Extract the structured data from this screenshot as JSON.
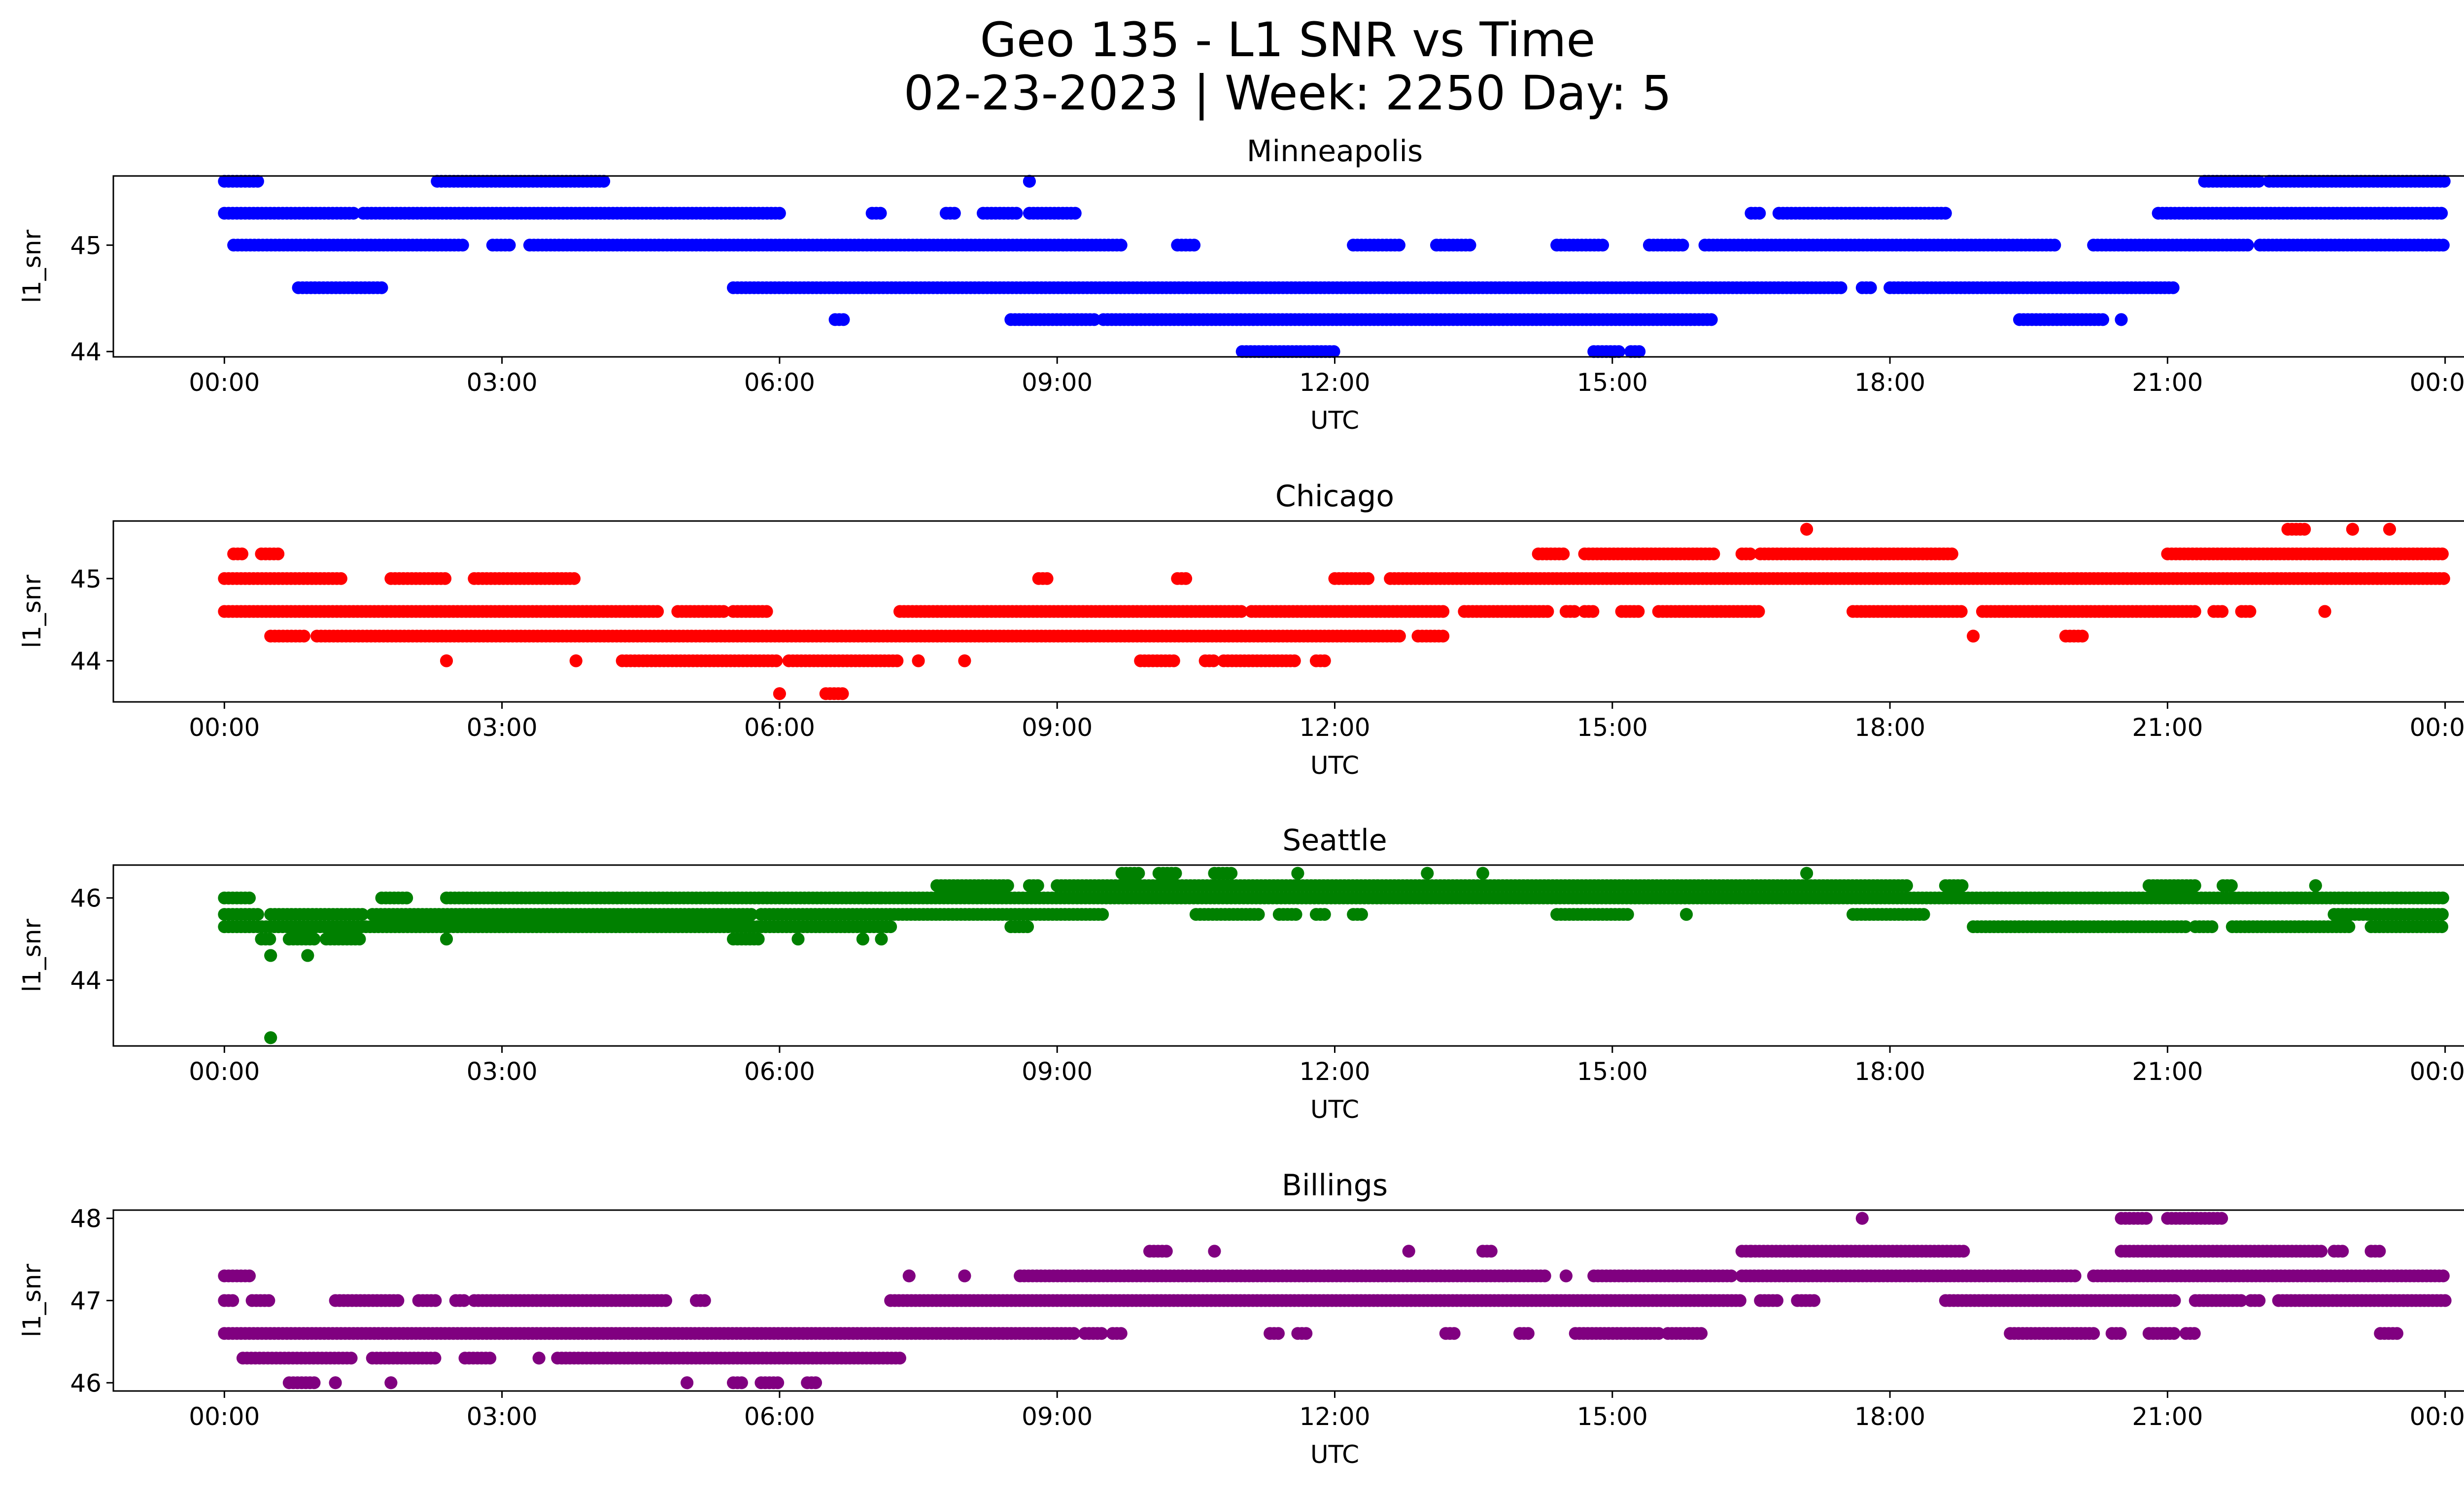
{
  "figure": {
    "title_line1": "Geo 135 - L1 SNR vs Time",
    "title_line2": "02-23-2023 | Week: 2250 Day: 5"
  },
  "chart_data": [
    {
      "type": "scatter",
      "title": "Minneapolis",
      "xlabel": "UTC",
      "ylabel": "l1_snr",
      "color": "#0000ff",
      "xlim_hours": [
        -1.2,
        25.2
      ],
      "ylim": [
        43.95,
        45.65
      ],
      "x_ticks": [
        "00:00",
        "03:00",
        "06:00",
        "09:00",
        "12:00",
        "15:00",
        "18:00",
        "21:00",
        "00:00"
      ],
      "y_ticks": [
        44,
        45
      ],
      "y_levels": [
        44.0,
        44.3,
        44.6,
        45.0,
        45.3,
        45.6
      ],
      "bands": [
        {
          "y": 45.0,
          "segments": [
            [
              0.1,
              2.6
            ],
            [
              2.9,
              3.1
            ],
            [
              3.3,
              9.7
            ],
            [
              10.3,
              10.5
            ],
            [
              12.2,
              12.7
            ],
            [
              13.1,
              13.5
            ],
            [
              14.4,
              14.9
            ],
            [
              15.4,
              15.8
            ],
            [
              16.0,
              19.8
            ],
            [
              20.2,
              21.9
            ],
            [
              22.0,
              24.0
            ]
          ]
        },
        {
          "y": 45.3,
          "segments": [
            [
              0.0,
              1.4
            ],
            [
              1.5,
              6.0
            ],
            [
              7.0,
              7.1
            ],
            [
              7.8,
              7.9
            ],
            [
              8.2,
              8.6
            ],
            [
              8.7,
              9.2
            ],
            [
              16.5,
              16.6
            ],
            [
              16.8,
              18.6
            ],
            [
              20.9,
              24.0
            ]
          ]
        },
        {
          "y": 45.6,
          "segments": [
            [
              0.0,
              0.4
            ],
            [
              2.3,
              4.1
            ],
            [
              8.7,
              8.7
            ],
            [
              21.4,
              22.0
            ],
            [
              22.1,
              24.0
            ]
          ]
        },
        {
          "y": 44.6,
          "segments": [
            [
              0.8,
              1.7
            ],
            [
              5.5,
              17.5
            ],
            [
              17.7,
              17.8
            ],
            [
              18.0,
              21.1
            ]
          ]
        },
        {
          "y": 44.3,
          "segments": [
            [
              6.6,
              6.7
            ],
            [
              8.5,
              9.4
            ],
            [
              9.5,
              16.1
            ],
            [
              19.4,
              20.3
            ],
            [
              20.5,
              20.5
            ]
          ]
        },
        {
          "y": 44.0,
          "segments": [
            [
              11.0,
              12.0
            ],
            [
              14.8,
              15.1
            ],
            [
              15.2,
              15.3
            ]
          ]
        }
      ]
    },
    {
      "type": "scatter",
      "title": "Chicago",
      "xlabel": "UTC",
      "ylabel": "l1_snr",
      "color": "#ff0000",
      "xlim_hours": [
        -1.2,
        25.2
      ],
      "ylim": [
        43.5,
        45.7
      ],
      "x_ticks": [
        "00:00",
        "03:00",
        "06:00",
        "09:00",
        "12:00",
        "15:00",
        "18:00",
        "21:00",
        "00:00"
      ],
      "y_ticks": [
        44,
        45
      ],
      "y_levels": [
        43.6,
        44.0,
        44.3,
        44.6,
        45.0,
        45.3,
        45.6
      ],
      "bands": [
        {
          "y": 45.0,
          "segments": [
            [
              0.0,
              1.3
            ],
            [
              1.8,
              2.4
            ],
            [
              2.7,
              3.8
            ],
            [
              8.8,
              8.9
            ],
            [
              10.3,
              10.4
            ],
            [
              12.0,
              12.4
            ],
            [
              12.6,
              24.0
            ]
          ]
        },
        {
          "y": 45.3,
          "segments": [
            [
              0.1,
              0.2
            ],
            [
              0.4,
              0.6
            ],
            [
              14.2,
              14.5
            ],
            [
              14.7,
              16.1
            ],
            [
              16.4,
              16.5
            ],
            [
              16.6,
              18.7
            ],
            [
              21.0,
              24.0
            ]
          ]
        },
        {
          "y": 45.6,
          "segments": [
            [
              17.1,
              17.1
            ],
            [
              22.3,
              22.5
            ],
            [
              23.0,
              23.0
            ],
            [
              23.4,
              23.4
            ]
          ]
        },
        {
          "y": 44.6,
          "segments": [
            [
              0.0,
              4.7
            ],
            [
              4.9,
              5.4
            ],
            [
              5.5,
              5.9
            ],
            [
              7.3,
              11.0
            ],
            [
              11.1,
              13.2
            ],
            [
              13.4,
              14.3
            ],
            [
              14.5,
              14.6
            ],
            [
              14.7,
              14.8
            ],
            [
              15.1,
              15.3
            ],
            [
              15.5,
              16.6
            ],
            [
              17.6,
              18.8
            ],
            [
              19.0,
              21.3
            ],
            [
              21.5,
              21.6
            ],
            [
              21.8,
              21.9
            ],
            [
              22.7,
              22.7
            ]
          ]
        },
        {
          "y": 44.3,
          "segments": [
            [
              0.5,
              0.9
            ],
            [
              1.0,
              12.7
            ],
            [
              12.9,
              13.2
            ],
            [
              18.9,
              18.9
            ],
            [
              19.9,
              20.1
            ]
          ]
        },
        {
          "y": 44.0,
          "segments": [
            [
              2.4,
              2.4
            ],
            [
              3.8,
              3.8
            ],
            [
              4.3,
              6.0
            ],
            [
              6.1,
              7.3
            ],
            [
              7.5,
              7.5
            ],
            [
              8.0,
              8.0
            ],
            [
              9.9,
              10.3
            ],
            [
              10.6,
              10.7
            ],
            [
              10.8,
              11.6
            ],
            [
              11.8,
              11.9
            ]
          ]
        },
        {
          "y": 43.6,
          "segments": [
            [
              6.0,
              6.0
            ],
            [
              6.5,
              6.7
            ]
          ]
        }
      ]
    },
    {
      "type": "scatter",
      "title": "Seattle",
      "xlabel": "UTC",
      "ylabel": "l1_snr",
      "color": "#008000",
      "xlim_hours": [
        -1.2,
        25.2
      ],
      "ylim": [
        42.4,
        46.8
      ],
      "x_ticks": [
        "00:00",
        "03:00",
        "06:00",
        "09:00",
        "12:00",
        "15:00",
        "18:00",
        "21:00",
        "00:00"
      ],
      "y_ticks": [
        44,
        46
      ],
      "y_levels": [
        42.6,
        44.6,
        45.0,
        45.3,
        45.6,
        46.0,
        46.3,
        46.6
      ],
      "bands": [
        {
          "y": 45.3,
          "segments": [
            [
              0.0,
              7.2
            ],
            [
              8.5,
              8.7
            ],
            [
              18.9,
              21.2
            ],
            [
              21.3,
              21.5
            ],
            [
              21.7,
              23.0
            ],
            [
              23.2,
              24.0
            ]
          ]
        },
        {
          "y": 45.6,
          "segments": [
            [
              0.0,
              0.4
            ],
            [
              0.5,
              1.5
            ],
            [
              1.6,
              5.7
            ],
            [
              5.8,
              9.5
            ],
            [
              10.5,
              11.2
            ],
            [
              11.4,
              11.6
            ],
            [
              11.8,
              11.9
            ],
            [
              12.2,
              12.3
            ],
            [
              14.4,
              15.2
            ],
            [
              15.8,
              15.8
            ],
            [
              17.6,
              18.4
            ],
            [
              22.8,
              24.0
            ]
          ]
        },
        {
          "y": 46.0,
          "segments": [
            [
              0.0,
              0.3
            ],
            [
              1.7,
              2.0
            ],
            [
              2.4,
              7.1
            ],
            [
              7.1,
              24.0
            ]
          ]
        },
        {
          "y": 46.3,
          "segments": [
            [
              7.7,
              8.5
            ],
            [
              8.7,
              8.8
            ],
            [
              9.0,
              18.2
            ],
            [
              18.6,
              18.8
            ],
            [
              20.8,
              21.3
            ],
            [
              21.6,
              21.7
            ],
            [
              22.6,
              22.6
            ]
          ]
        },
        {
          "y": 46.6,
          "segments": [
            [
              9.7,
              9.9
            ],
            [
              10.1,
              10.3
            ],
            [
              10.7,
              10.9
            ],
            [
              11.6,
              11.6
            ],
            [
              13.0,
              13.0
            ],
            [
              13.6,
              13.6
            ],
            [
              17.1,
              17.1
            ]
          ]
        },
        {
          "y": 45.0,
          "segments": [
            [
              0.4,
              0.5
            ],
            [
              0.7,
              1.0
            ],
            [
              1.1,
              1.5
            ],
            [
              2.4,
              2.4
            ],
            [
              5.5,
              5.8
            ],
            [
              6.2,
              6.2
            ],
            [
              6.9,
              6.9
            ],
            [
              7.1,
              7.1
            ]
          ]
        },
        {
          "y": 44.6,
          "segments": [
            [
              0.5,
              0.5
            ],
            [
              0.9,
              0.9
            ]
          ]
        },
        {
          "y": 42.6,
          "segments": [
            [
              0.5,
              0.5
            ]
          ]
        }
      ]
    },
    {
      "type": "scatter",
      "title": "Billings",
      "xlabel": "UTC",
      "ylabel": "l1_snr",
      "color": "#800080",
      "xlim_hours": [
        -1.2,
        25.2
      ],
      "ylim": [
        45.9,
        48.1
      ],
      "x_ticks": [
        "00:00",
        "03:00",
        "06:00",
        "09:00",
        "12:00",
        "15:00",
        "18:00",
        "21:00",
        "00:00"
      ],
      "y_ticks": [
        46,
        47,
        48
      ],
      "y_levels": [
        46.0,
        46.3,
        46.6,
        47.0,
        47.3,
        47.6,
        48.0
      ],
      "bands": [
        {
          "y": 46.0,
          "segments": [
            [
              0.7,
              1.0
            ],
            [
              1.2,
              1.2
            ],
            [
              1.8,
              1.8
            ],
            [
              5.0,
              5.0
            ],
            [
              5.5,
              5.6
            ],
            [
              5.8,
              6.0
            ],
            [
              6.3,
              6.4
            ]
          ]
        },
        {
          "y": 46.3,
          "segments": [
            [
              0.2,
              1.4
            ],
            [
              1.6,
              2.3
            ],
            [
              2.6,
              2.9
            ],
            [
              3.4,
              3.4
            ],
            [
              3.6,
              4.6
            ],
            [
              4.6,
              7.3
            ]
          ]
        },
        {
          "y": 46.6,
          "segments": [
            [
              0.0,
              9.2
            ],
            [
              9.3,
              9.5
            ],
            [
              9.6,
              9.7
            ],
            [
              11.3,
              11.4
            ],
            [
              11.6,
              11.7
            ],
            [
              13.2,
              13.3
            ],
            [
              14.0,
              14.1
            ],
            [
              14.6,
              15.5
            ],
            [
              15.6,
              16.0
            ],
            [
              19.3,
              20.2
            ],
            [
              20.4,
              20.5
            ],
            [
              20.8,
              21.1
            ],
            [
              21.2,
              21.3
            ],
            [
              23.3,
              23.5
            ]
          ]
        },
        {
          "y": 47.0,
          "segments": [
            [
              0.0,
              0.1
            ],
            [
              0.3,
              0.5
            ],
            [
              1.2,
              1.9
            ],
            [
              2.1,
              2.3
            ],
            [
              2.5,
              2.6
            ],
            [
              2.7,
              4.8
            ],
            [
              5.1,
              5.2
            ],
            [
              7.2,
              16.4
            ],
            [
              16.6,
              16.8
            ],
            [
              17.0,
              17.2
            ],
            [
              18.6,
              21.1
            ],
            [
              21.3,
              21.8
            ],
            [
              21.9,
              22.0
            ],
            [
              22.2,
              24.0
            ]
          ]
        },
        {
          "y": 47.3,
          "segments": [
            [
              0.0,
              0.3
            ],
            [
              7.4,
              7.4
            ],
            [
              8.0,
              8.0
            ],
            [
              8.6,
              14.3
            ],
            [
              14.5,
              14.5
            ],
            [
              14.8,
              16.3
            ],
            [
              16.4,
              20.0
            ],
            [
              20.2,
              24.0
            ]
          ]
        },
        {
          "y": 47.6,
          "segments": [
            [
              10.0,
              10.2
            ],
            [
              10.7,
              10.7
            ],
            [
              12.8,
              12.8
            ],
            [
              13.6,
              13.7
            ],
            [
              16.4,
              16.5
            ],
            [
              16.5,
              18.8
            ],
            [
              20.5,
              22.7
            ],
            [
              22.8,
              22.9
            ],
            [
              23.2,
              23.3
            ]
          ]
        },
        {
          "y": 48.0,
          "segments": [
            [
              17.7,
              17.7
            ],
            [
              20.5,
              20.8
            ],
            [
              21.0,
              21.6
            ]
          ]
        }
      ]
    }
  ]
}
